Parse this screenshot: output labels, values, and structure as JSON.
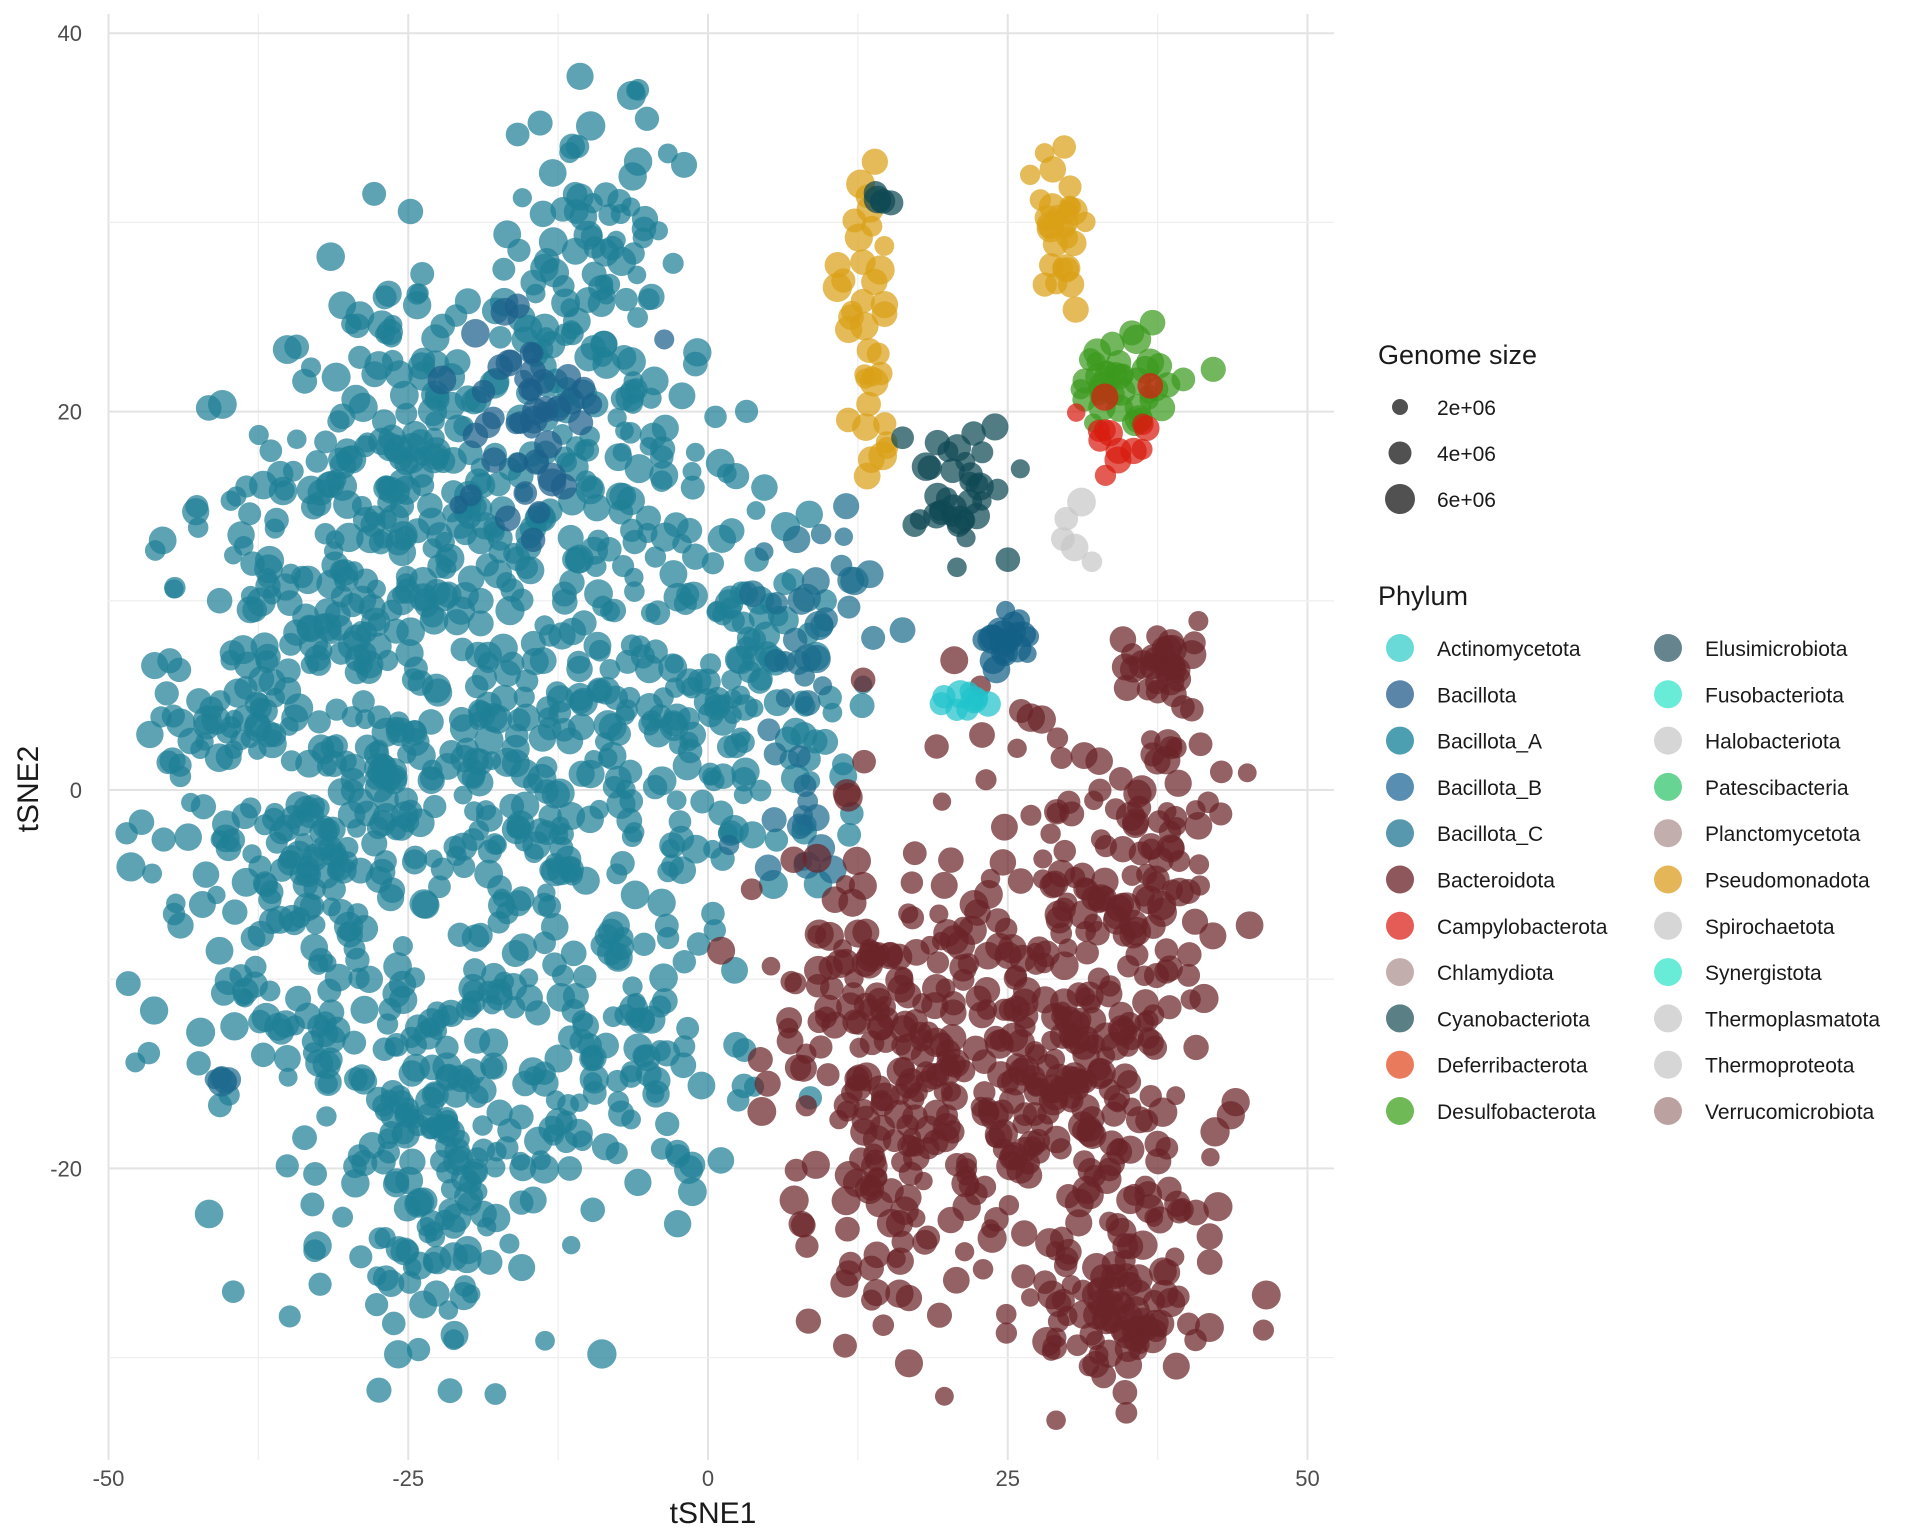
{
  "chart_data": {
    "type": "scatter",
    "title": "",
    "xlabel": "tSNE1",
    "ylabel": "tSNE2",
    "xlim": [
      -52,
      52
    ],
    "ylim": [
      -35,
      41
    ],
    "x_ticks": [
      -50,
      -25,
      0,
      25,
      50
    ],
    "y_ticks": [
      40,
      20,
      0,
      -20
    ],
    "x_tick_labels": [
      "-50",
      "-25",
      "0",
      "25",
      "50"
    ],
    "y_tick_labels": [
      "40",
      "20",
      "0",
      "-20"
    ],
    "grid": true,
    "legend_position": "right",
    "size_legend": {
      "title": "Genome size",
      "entries": [
        {
          "label": "2e+06",
          "value": 2000000
        },
        {
          "label": "4e+06",
          "value": 4000000
        },
        {
          "label": "6e+06",
          "value": 6000000
        }
      ]
    },
    "color_legend": {
      "title": "Phylum",
      "entries": [
        {
          "label": "Actinomycetota",
          "color": "#4fd3d0"
        },
        {
          "label": "Bacillota",
          "color": "#3d6f99"
        },
        {
          "label": "Bacillota_A",
          "color": "#2b8ea3"
        },
        {
          "label": "Bacillota_B",
          "color": "#3a7aa3"
        },
        {
          "label": "Bacillota_C",
          "color": "#3b86a0"
        },
        {
          "label": "Bacteroidota",
          "color": "#7a3a3e"
        },
        {
          "label": "Campylobacterota",
          "color": "#e0403a"
        },
        {
          "label": "Chlamydiota",
          "color": "#b8a0a0"
        },
        {
          "label": "Cyanobacteriota",
          "color": "#3d6870"
        },
        {
          "label": "Deferribacterota",
          "color": "#e6633f"
        },
        {
          "label": "Desulfobacterota",
          "color": "#57ad3a"
        },
        {
          "label": "Elusimicrobiota",
          "color": "#4b6f7a"
        },
        {
          "label": "Fusobacteriota",
          "color": "#4ee9d1"
        },
        {
          "label": "Halobacteriota",
          "color": "#cfcfcf"
        },
        {
          "label": "Patescibacteria",
          "color": "#4ccc80"
        },
        {
          "label": "Planctomycetota",
          "color": "#b8a0a0"
        },
        {
          "label": "Pseudomonadota",
          "color": "#e0a93a"
        },
        {
          "label": "Spirochaetota",
          "color": "#cfcfcf"
        },
        {
          "label": "Synergistota",
          "color": "#4ee9d1"
        },
        {
          "label": "Thermoplasmatota",
          "color": "#cfcfcf"
        },
        {
          "label": "Thermoproteota",
          "color": "#cfcfcf"
        },
        {
          "label": "Verrucomicrobiota",
          "color": "#b09090"
        }
      ]
    },
    "clusters": [
      {
        "phylum": "Bacillota_A",
        "color": "#1f7f96",
        "cx": -34,
        "cy": 0,
        "sx": 7,
        "sy": 9,
        "n": 380
      },
      {
        "phylum": "Bacillota_A",
        "color": "#1f7f96",
        "cx": -25,
        "cy": 17,
        "sx": 6,
        "sy": 5,
        "n": 170
      },
      {
        "phylum": "Bacillota_A",
        "color": "#1f7f96",
        "cx": -23,
        "cy": -19,
        "sx": 5,
        "sy": 5,
        "n": 180
      },
      {
        "phylum": "Bacillota_A",
        "color": "#1f7f96",
        "cx": -12,
        "cy": 3,
        "sx": 8,
        "sy": 8,
        "n": 300
      },
      {
        "phylum": "Bacillota_A",
        "color": "#1f7f96",
        "cx": -9,
        "cy": 25,
        "sx": 4,
        "sy": 7,
        "n": 140
      },
      {
        "phylum": "Bacillota_A",
        "color": "#1f7f96",
        "cx": -8,
        "cy": -14,
        "sx": 5,
        "sy": 4,
        "n": 90
      },
      {
        "phylum": "Bacillota_A",
        "color": "#1f7f96",
        "cx": 3,
        "cy": 6,
        "sx": 4,
        "sy": 6,
        "n": 110
      },
      {
        "phylum": "Bacillota_B",
        "color": "#1d5f8a",
        "cx": -15,
        "cy": 20,
        "sx": 3,
        "sy": 3,
        "n": 45
      },
      {
        "phylum": "Bacillota_C",
        "color": "#1c6e8e",
        "cx": 9,
        "cy": 9,
        "sx": 3,
        "sy": 3,
        "n": 30
      },
      {
        "phylum": "Bacillota",
        "color": "#1f6b8f",
        "cx": 8,
        "cy": -1,
        "sx": 2,
        "sy": 2,
        "n": 14
      },
      {
        "phylum": "Bacillota_B",
        "color": "#1f6b8f",
        "cx": -40.5,
        "cy": -15.3,
        "sx": 0.3,
        "sy": 0.2,
        "n": 6
      },
      {
        "phylum": "Bacteroidota",
        "color": "#6b2428",
        "cx": 15,
        "cy": -14,
        "sx": 5,
        "sy": 6,
        "n": 220
      },
      {
        "phylum": "Bacteroidota",
        "color": "#6b2428",
        "cx": 30,
        "cy": -14,
        "sx": 6,
        "sy": 7,
        "n": 300
      },
      {
        "phylum": "Bacteroidota",
        "color": "#6b2428",
        "cx": 34,
        "cy": -28,
        "sx": 3,
        "sy": 2,
        "n": 70
      },
      {
        "phylum": "Bacteroidota",
        "color": "#6b2428",
        "cx": 38,
        "cy": 6.5,
        "sx": 1.5,
        "sy": 1,
        "n": 30
      },
      {
        "phylum": "Bacteroidota",
        "color": "#6b2428",
        "cx": 36,
        "cy": -3,
        "sx": 4,
        "sy": 3,
        "n": 60
      },
      {
        "phylum": "Pseudomonadota",
        "color": "#d9a117",
        "cx": 29,
        "cy": 30,
        "sx": 1,
        "sy": 1.8,
        "n": 30
      },
      {
        "phylum": "Pseudomonadota",
        "color": "#d9a117",
        "cx": 13,
        "cy": 27,
        "sx": 1,
        "sy": 3,
        "n": 25
      },
      {
        "phylum": "Pseudomonadota",
        "color": "#d9a117",
        "cx": 14,
        "cy": 20,
        "sx": 0.6,
        "sy": 2,
        "n": 12
      },
      {
        "phylum": "Desulfobacterota",
        "color": "#3c9a1e",
        "cx": 36,
        "cy": 21.5,
        "sx": 2.5,
        "sy": 1.2,
        "n": 40
      },
      {
        "phylum": "Campylobacterota",
        "color": "#d81c0f",
        "cx": 34,
        "cy": 18.5,
        "sx": 1.5,
        "sy": 1.2,
        "n": 14
      },
      {
        "phylum": "Cyanobacteriota",
        "color": "#0f4a55",
        "cx": 21,
        "cy": 16,
        "sx": 3,
        "sy": 2,
        "n": 35
      },
      {
        "phylum": "Bacillota_C",
        "color": "#135f86",
        "cx": 25,
        "cy": 8,
        "sx": 1.5,
        "sy": 0.6,
        "n": 20
      },
      {
        "phylum": "Actinomycetota",
        "color": "#20c4cc",
        "cx": 22,
        "cy": 4.5,
        "sx": 1,
        "sy": 0.5,
        "n": 10
      },
      {
        "phylum": "Cyanobacteriota",
        "color": "#0f4a55",
        "cx": 14.5,
        "cy": 31,
        "sx": 0.4,
        "sy": 0.3,
        "n": 5
      },
      {
        "phylum": "Halobacteriota",
        "color": "#c8c8c8",
        "cx": 30.5,
        "cy": 13.5,
        "sx": 0.8,
        "sy": 1.2,
        "n": 5
      }
    ]
  }
}
